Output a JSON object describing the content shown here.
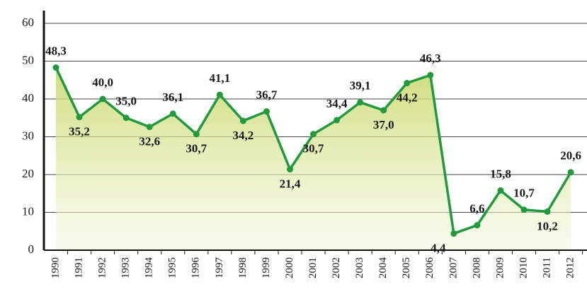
{
  "chart_data": {
    "type": "line",
    "categories": [
      "1990",
      "1991",
      "1992",
      "1993",
      "1994",
      "1995",
      "1996",
      "1997",
      "1998",
      "1999",
      "2000",
      "2001",
      "2002",
      "2003",
      "2004",
      "2005",
      "2006",
      "2007",
      "2008",
      "2009",
      "2010",
      "2011",
      "2012"
    ],
    "series": [
      {
        "color": "#1f9a3c",
        "values": [
          48.3,
          35.2,
          40.0,
          35.0,
          32.6,
          36.1,
          30.7,
          41.1,
          34.2,
          36.7,
          21.4,
          30.7,
          34.4,
          39.1,
          37.0,
          44.2,
          46.3,
          4.4,
          6.6,
          15.8,
          10.7,
          10.2,
          20.6
        ],
        "value_labels": [
          "48,3",
          "35,2",
          "40,0",
          "35,0",
          "32,6",
          "36,1",
          "30,7",
          "41,1",
          "34,2",
          "36,7",
          "21,4",
          "30,7",
          "34,4",
          "39,1",
          "37,0",
          "44,2",
          "46,3",
          "4,4",
          "6,6",
          "15,8",
          "10,7",
          "10,2",
          "20,6"
        ]
      }
    ],
    "ylim": [
      0,
      60
    ],
    "yticks": [
      0,
      10,
      20,
      30,
      40,
      50,
      60
    ],
    "grid": true
  }
}
